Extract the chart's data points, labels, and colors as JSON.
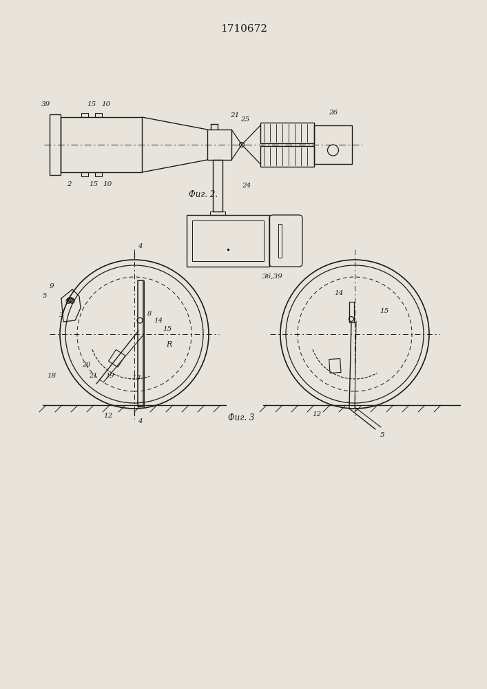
{
  "title": "1710672",
  "fig2_label": "Фиг. 2.",
  "fig3_label": "Фиг. 3",
  "bg_color": "#e8e4dc",
  "line_color": "#1a1a1a",
  "title_fontsize": 11,
  "label_fontsize": 7.5
}
